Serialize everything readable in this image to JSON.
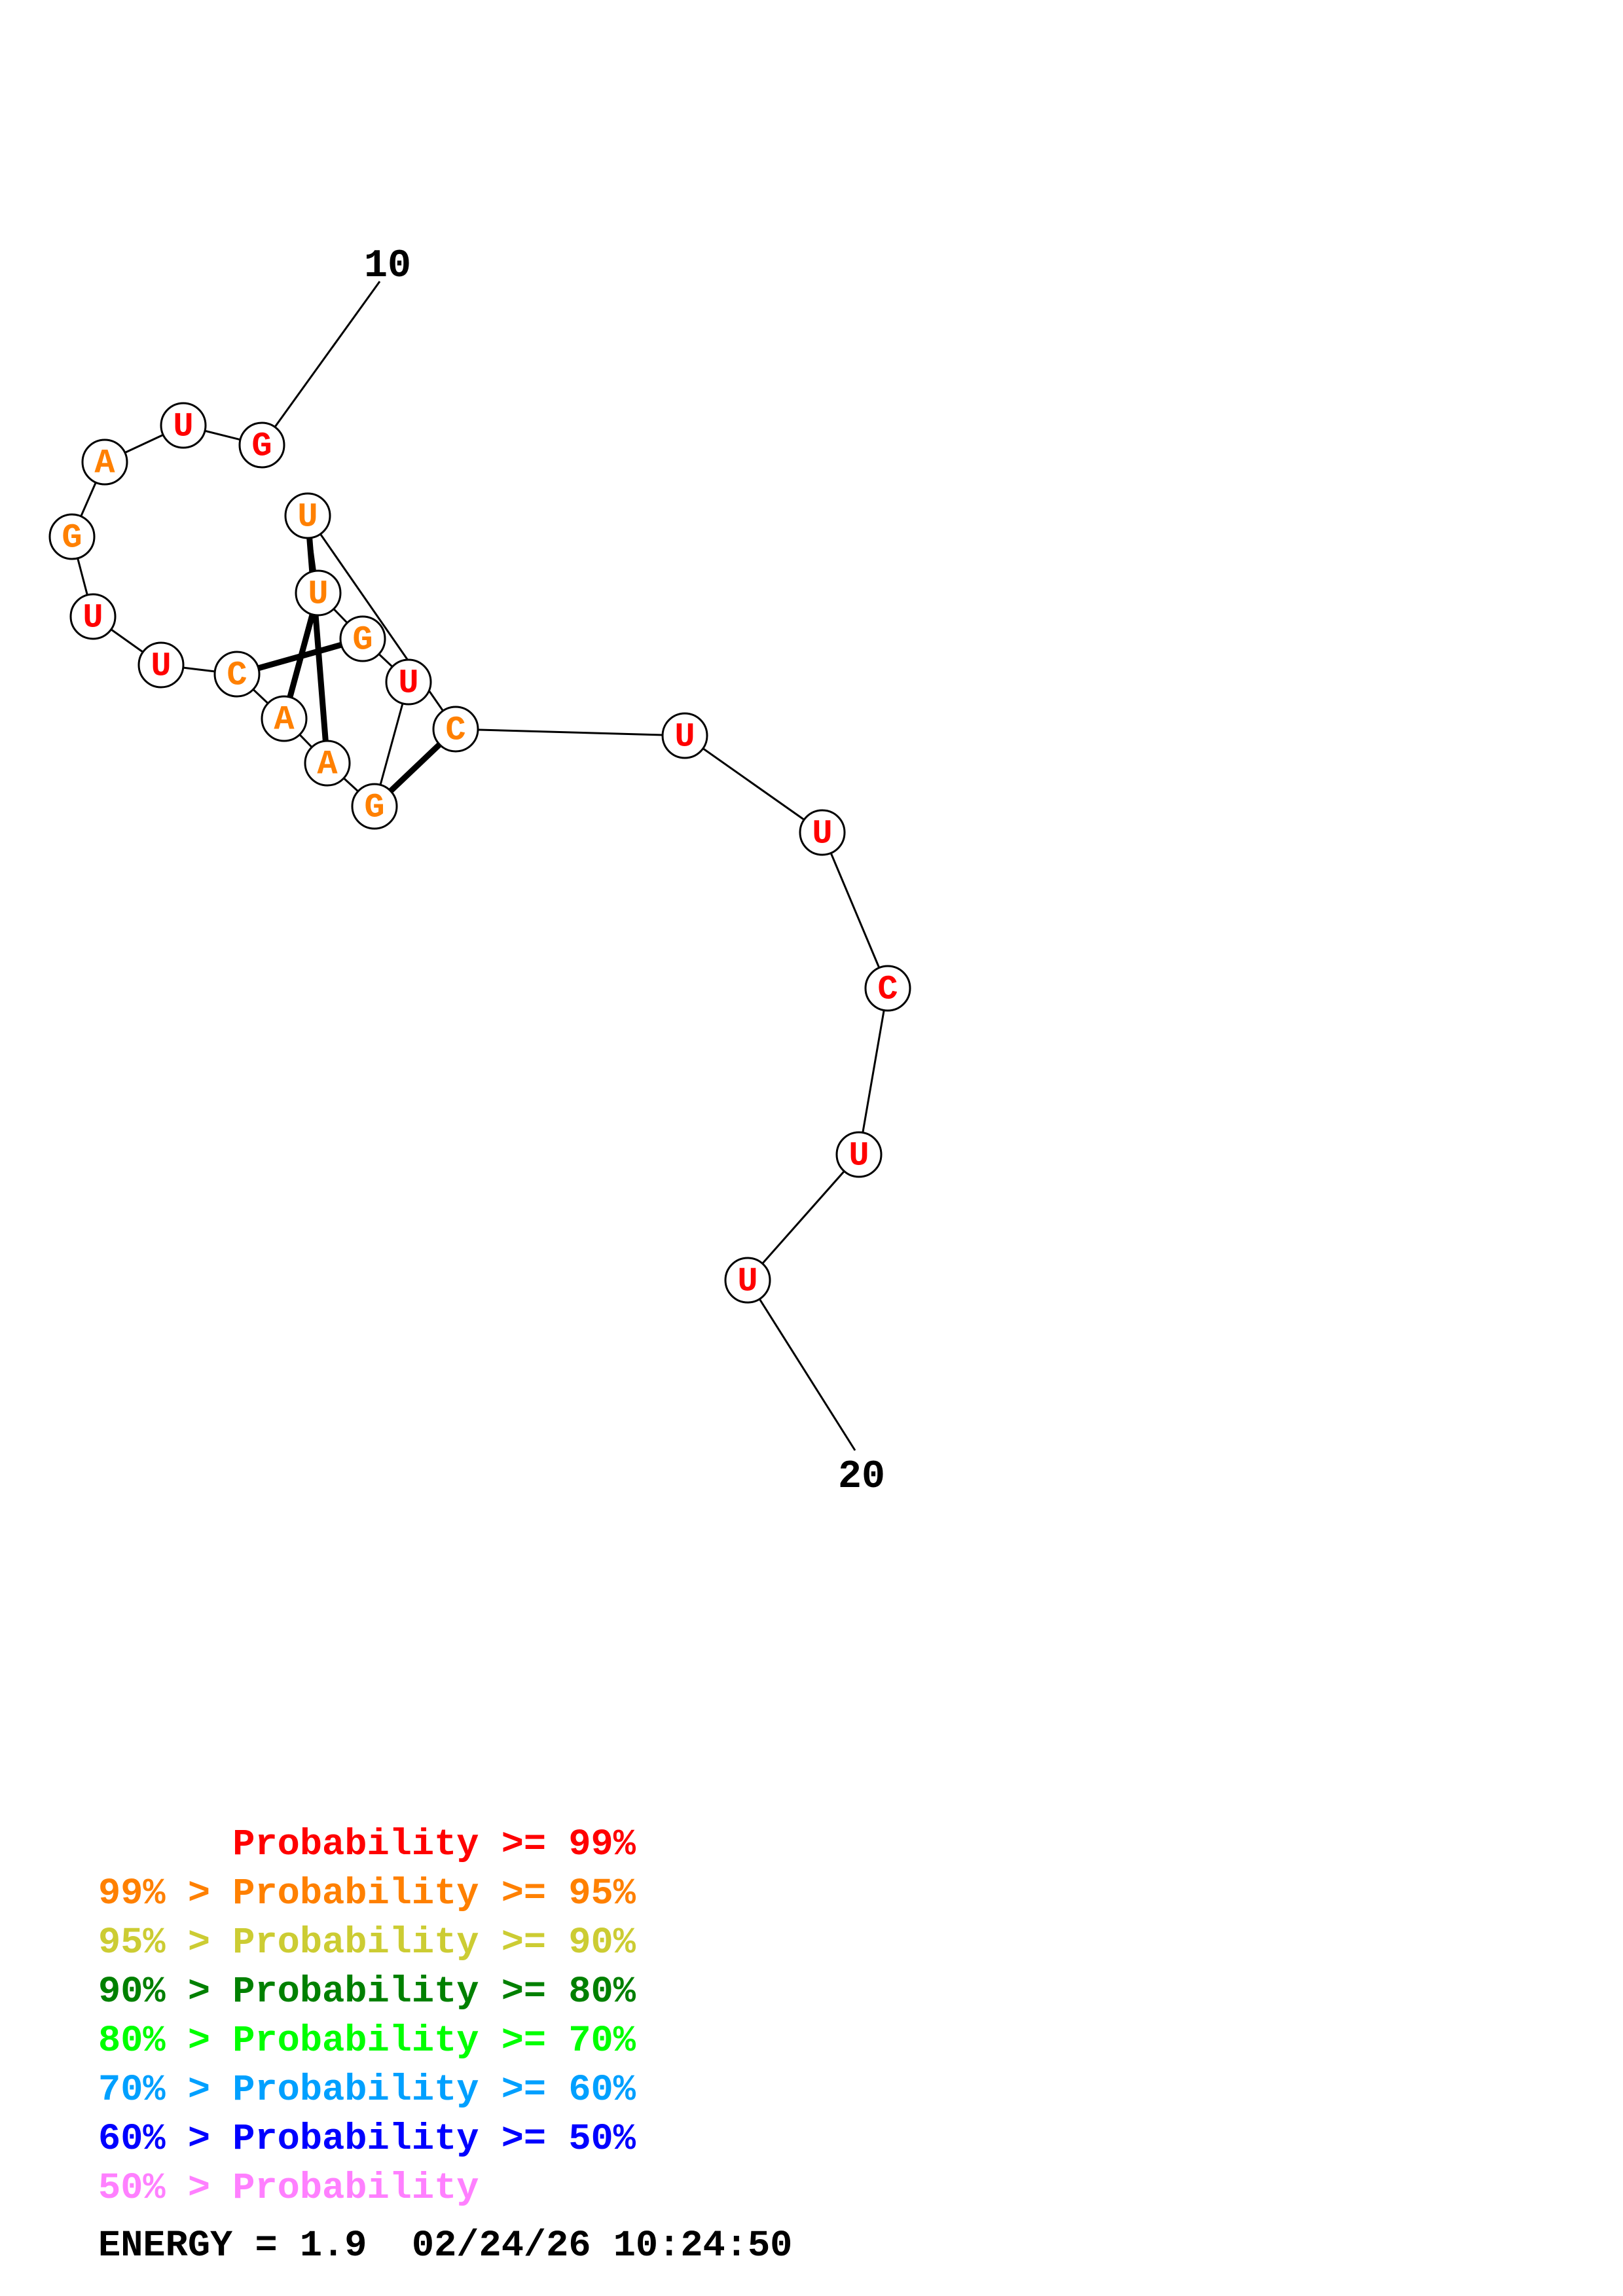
{
  "diagram": {
    "start_label": "10",
    "end_label": "20",
    "nucleotides": [
      {
        "base": "G",
        "color": "#ff0000"
      },
      {
        "base": "U",
        "color": "#ff0000"
      },
      {
        "base": "A",
        "color": "#ff8000"
      },
      {
        "base": "G",
        "color": "#ff8000"
      },
      {
        "base": "U",
        "color": "#ff0000"
      },
      {
        "base": "U",
        "color": "#ff0000"
      },
      {
        "base": "C",
        "color": "#ff8000"
      },
      {
        "base": "A",
        "color": "#ff8000"
      },
      {
        "base": "A",
        "color": "#ff8000"
      },
      {
        "base": "G",
        "color": "#ff8000"
      },
      {
        "base": "U",
        "color": "#ff0000"
      },
      {
        "base": "G",
        "color": "#ff8000"
      },
      {
        "base": "U",
        "color": "#ff8000"
      },
      {
        "base": "U",
        "color": "#ff8000"
      },
      {
        "base": "C",
        "color": "#ff8000"
      },
      {
        "base": "U",
        "color": "#ff0000"
      },
      {
        "base": "U",
        "color": "#ff0000"
      },
      {
        "base": "C",
        "color": "#ff0000"
      },
      {
        "base": "U",
        "color": "#ff0000"
      },
      {
        "base": "U",
        "color": "#ff0000"
      }
    ]
  },
  "legend": [
    {
      "text": "      Probability >= 99%",
      "color": "#ff0000"
    },
    {
      "text": "99% > Probability >= 95%",
      "color": "#ff8000"
    },
    {
      "text": "95% > Probability >= 90%",
      "color": "#cccc33"
    },
    {
      "text": "90% > Probability >= 80%",
      "color": "#008000"
    },
    {
      "text": "80% > Probability >= 70%",
      "color": "#00ff00"
    },
    {
      "text": "70% > Probability >= 60%",
      "color": "#00a0ff"
    },
    {
      "text": "60% > Probability >= 50%",
      "color": "#0000ff"
    },
    {
      "text": "50% > Probability",
      "color": "#ff80ff"
    }
  ],
  "footer": {
    "energy": "ENERGY = 1.9  02/24/26 10:24:50"
  }
}
